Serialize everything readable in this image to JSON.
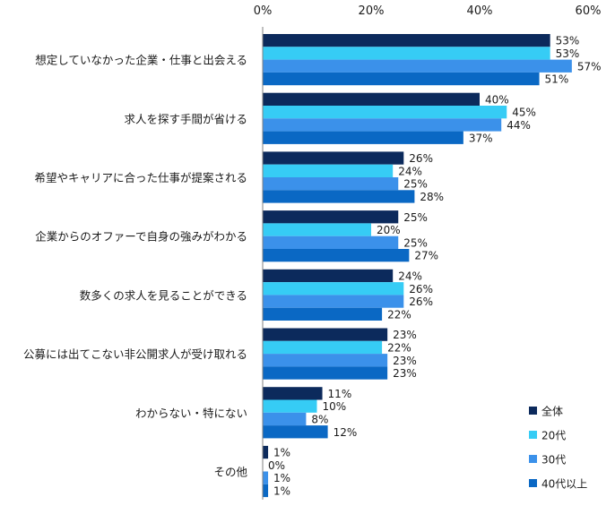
{
  "chart_data": {
    "type": "bar",
    "orientation": "horizontal",
    "title": "",
    "xlabel": "",
    "ylabel": "",
    "xlim": [
      0,
      60
    ],
    "x_ticks": [
      0,
      20,
      40,
      60
    ],
    "x_tick_labels": [
      "0%",
      "20%",
      "40%",
      "60%"
    ],
    "value_suffix": "%",
    "grid": false,
    "legend_position": "bottom-right",
    "categories": [
      "想定していなかった企業・仕事と出会える",
      "求人を探す手間が省ける",
      "希望やキャリアに合った仕事が提案される",
      "企業からのオファーで自身の強みがわかる",
      "数多くの求人を見ることができる",
      "公募には出てこない非公開求人が受け取れる",
      "わからない・特にない",
      "その他"
    ],
    "series": [
      {
        "name": "全体",
        "color": "#0c2a5c",
        "values": [
          53,
          40,
          26,
          25,
          24,
          23,
          11,
          1
        ]
      },
      {
        "name": "20代",
        "color": "#36ccf5",
        "values": [
          53,
          45,
          24,
          20,
          26,
          22,
          10,
          0
        ]
      },
      {
        "name": "30代",
        "color": "#3b91ea",
        "values": [
          57,
          44,
          25,
          25,
          26,
          23,
          8,
          1
        ]
      },
      {
        "name": "40代以上",
        "color": "#0a68c4",
        "values": [
          51,
          37,
          28,
          27,
          22,
          23,
          12,
          1
        ]
      }
    ]
  }
}
